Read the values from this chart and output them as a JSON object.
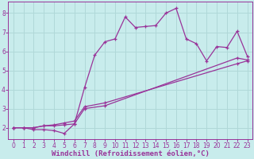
{
  "xlabel": "Windchill (Refroidissement éolien,°C)",
  "bg_color": "#c8ecec",
  "grid_color": "#b0d8d8",
  "line_color": "#993399",
  "xlim": [
    -0.5,
    23.5
  ],
  "ylim": [
    1.4,
    8.6
  ],
  "xticks": [
    0,
    1,
    2,
    3,
    4,
    5,
    6,
    7,
    8,
    9,
    10,
    11,
    12,
    13,
    14,
    15,
    16,
    17,
    18,
    19,
    20,
    21,
    22,
    23
  ],
  "yticks": [
    2,
    3,
    4,
    5,
    6,
    7,
    8
  ],
  "curve1_x": [
    0,
    1,
    2,
    3,
    4,
    5,
    6,
    7,
    8,
    9,
    10,
    11,
    12,
    13,
    14,
    15,
    16,
    17,
    18,
    19,
    20,
    21,
    22,
    23
  ],
  "curve1_y": [
    2.0,
    2.0,
    1.9,
    1.9,
    1.85,
    1.7,
    2.2,
    4.1,
    5.8,
    6.5,
    6.65,
    7.8,
    7.25,
    7.3,
    7.35,
    8.0,
    8.25,
    6.65,
    6.4,
    5.5,
    6.25,
    6.2,
    7.05,
    5.75
  ],
  "curve2_x": [
    0,
    1,
    2,
    3,
    4,
    5,
    6,
    7,
    9,
    22,
    23
  ],
  "curve2_y": [
    2.0,
    2.0,
    2.0,
    2.1,
    2.1,
    2.15,
    2.2,
    3.0,
    3.15,
    5.65,
    5.55
  ],
  "curve3_x": [
    0,
    1,
    2,
    3,
    4,
    5,
    6,
    7,
    9,
    22,
    23
  ],
  "curve3_y": [
    2.0,
    2.0,
    2.0,
    2.1,
    2.15,
    2.25,
    2.35,
    3.1,
    3.3,
    5.35,
    5.5
  ],
  "tick_fontsize": 5.5,
  "xlabel_fontsize": 6.5,
  "xlabel_color": "#993399",
  "tick_color": "#993399",
  "spine_color": "#993399"
}
